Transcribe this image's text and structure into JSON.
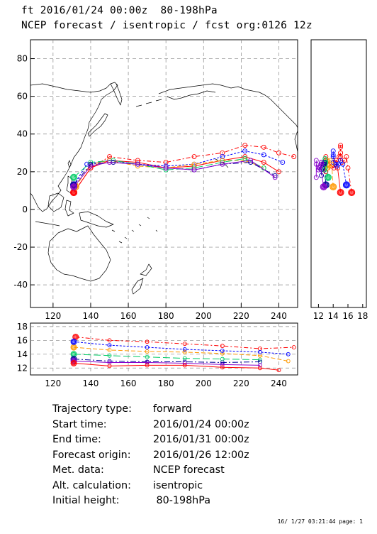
{
  "header": {
    "line1": "ft 2016/01/24 00:00z  80-198hPa",
    "line2": "NCEP forecast / isentropic / fcst org:0126 12z"
  },
  "colors": {
    "red": "#ff0000",
    "blue": "#0000ff",
    "orange": "#ff9900",
    "green": "#00cc66",
    "purple": "#8800cc",
    "darkblue": "#000099"
  },
  "chart_data": [
    {
      "type": "line",
      "name": "trajectory-map",
      "x_ticks": [
        "120",
        "140",
        "160",
        "180",
        "200",
        "220",
        "240"
      ],
      "y_ticks": [
        "80",
        "60",
        "40",
        "20",
        "0",
        "-20",
        "-40"
      ],
      "xlim": [
        108,
        250
      ],
      "ylim": [
        -52,
        90
      ],
      "grid": true,
      "series": [
        {
          "color": "#ff0000",
          "dash": "6 3 2 3",
          "x": [
            131,
            140,
            150,
            165,
            180,
            195,
            210,
            222,
            232,
            240,
            248
          ],
          "y": [
            9,
            22,
            28,
            26,
            25,
            28,
            30,
            34,
            33,
            30,
            28
          ]
        },
        {
          "color": "#ff0000",
          "dash": "",
          "x": [
            131,
            140,
            150,
            165,
            180,
            195,
            210,
            222,
            232,
            240
          ],
          "y": [
            9,
            22,
            26,
            25,
            22,
            23,
            26,
            28,
            25,
            20
          ]
        },
        {
          "color": "#0000ff",
          "dash": "3 2",
          "x": [
            131,
            138,
            150,
            165,
            180,
            195,
            210,
            222,
            232,
            242
          ],
          "y": [
            13,
            24,
            26,
            24,
            23,
            24,
            28,
            31,
            29,
            25
          ]
        },
        {
          "color": "#ff9900",
          "dash": "6 3",
          "x": [
            132,
            140,
            150,
            165,
            180,
            195,
            210,
            222,
            232
          ],
          "y": [
            12,
            24,
            26,
            23,
            22,
            24,
            26,
            26,
            22
          ]
        },
        {
          "color": "#00cc66",
          "dash": "10 4",
          "x": [
            131,
            140,
            152,
            165,
            180,
            195,
            210,
            222,
            232
          ],
          "y": [
            17,
            25,
            26,
            24,
            21,
            22,
            25,
            27,
            22
          ]
        },
        {
          "color": "#000099",
          "dash": "8 3 2 3",
          "x": [
            131,
            140,
            152,
            165,
            180,
            195,
            210,
            225,
            238
          ],
          "y": [
            13,
            24,
            25,
            24,
            22,
            21,
            24,
            25,
            18
          ]
        },
        {
          "color": "#8800cc",
          "dash": "",
          "x": [
            131,
            140,
            150,
            165,
            180,
            195,
            210,
            225,
            238
          ],
          "y": [
            12,
            23,
            25,
            24,
            22,
            21,
            24,
            26,
            17
          ]
        }
      ]
    },
    {
      "type": "line",
      "name": "pressure-time-section",
      "x_ticks": [
        "120",
        "140",
        "160",
        "180",
        "200",
        "220",
        "240"
      ],
      "y_ticks": [
        "18",
        "16",
        "14",
        "12"
      ],
      "xlim": [
        108,
        250
      ],
      "ylim": [
        11,
        18.5
      ],
      "grid": true,
      "series": [
        {
          "color": "#ff0000",
          "dash": "6 3 2 3",
          "x": [
            132,
            150,
            170,
            190,
            210,
            230,
            248
          ],
          "y": [
            16.5,
            16,
            15.8,
            15.5,
            15.2,
            14.8,
            15
          ]
        },
        {
          "color": "#ff9900",
          "dash": "6 3",
          "x": [
            131,
            150,
            170,
            190,
            210,
            230,
            245
          ],
          "y": [
            15,
            14.6,
            14.4,
            14.3,
            14.1,
            13.8,
            13
          ]
        },
        {
          "color": "#0000ff",
          "dash": "3 2",
          "x": [
            131,
            150,
            170,
            190,
            210,
            230,
            245
          ],
          "y": [
            15.8,
            15.3,
            15,
            14.7,
            14.5,
            14.3,
            14
          ]
        },
        {
          "color": "#00cc66",
          "dash": "10 4",
          "x": [
            131,
            150,
            170,
            190,
            210,
            230
          ],
          "y": [
            14,
            13.8,
            13.6,
            13.4,
            13.3,
            13.2
          ]
        },
        {
          "color": "#000099",
          "dash": "8 3 2 3",
          "x": [
            131,
            150,
            170,
            190,
            210,
            230
          ],
          "y": [
            13.3,
            13,
            12.9,
            12.9,
            12.8,
            12.9
          ]
        },
        {
          "color": "#8800cc",
          "dash": "",
          "x": [
            131,
            150,
            170,
            190,
            210,
            230
          ],
          "y": [
            13,
            12.8,
            12.8,
            12.7,
            12.5,
            12.4
          ]
        },
        {
          "color": "#ff0000",
          "dash": "",
          "x": [
            131,
            150,
            170,
            190,
            210,
            230,
            240
          ],
          "y": [
            12.7,
            12.3,
            12.4,
            12.4,
            12.1,
            12,
            11.7
          ]
        }
      ]
    },
    {
      "type": "scatter",
      "name": "latitude-side-panel",
      "x_ticks": [
        "12",
        "14",
        "16",
        "18"
      ],
      "xlim": [
        11,
        18.5
      ],
      "ylim": [
        -52,
        90
      ]
    }
  ],
  "info": {
    "rows": [
      {
        "label": "Trajectory type:",
        "value": "forward"
      },
      {
        "label": "Start time:",
        "value": "2016/01/24 00:00z"
      },
      {
        "label": "End time:",
        "value": "2016/01/31 00:00z"
      },
      {
        "label": "Forecast origin:",
        "value": "2016/01/26 12:00z"
      },
      {
        "label": "Met. data:",
        "value": "NCEP forecast"
      },
      {
        "label": "Alt. calculation:",
        "value": "isentropic"
      },
      {
        "label": "Initial height:",
        "value": " 80-198hPa"
      }
    ]
  },
  "footer": "16/ 1/27 03:21:44 page: 1"
}
